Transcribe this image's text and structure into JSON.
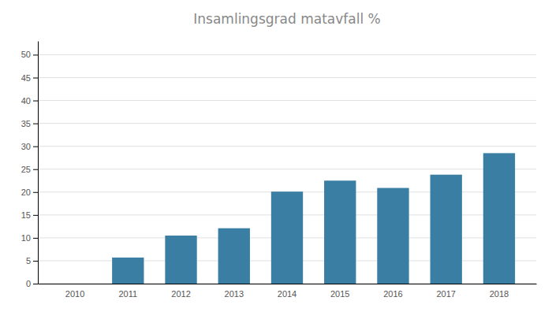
{
  "chart_data": {
    "type": "bar",
    "title": "Insamlingsgrad matavfall %",
    "categories": [
      "2010",
      "2011",
      "2012",
      "2013",
      "2014",
      "2015",
      "2016",
      "2017",
      "2018"
    ],
    "values": [
      0,
      5.7,
      10.5,
      12.1,
      20.1,
      22.5,
      20.9,
      23.8,
      28.5
    ],
    "color": "#3a7fa3",
    "ylim": [
      0,
      53
    ],
    "yticks": [
      0,
      5,
      10,
      15,
      20,
      25,
      30,
      35,
      40,
      45,
      50
    ],
    "grid": true
  }
}
